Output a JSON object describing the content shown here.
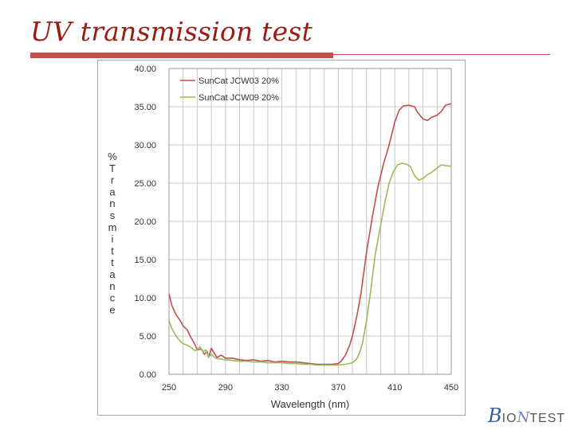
{
  "slide": {
    "title": "UV transmission test"
  },
  "logo": {
    "text": "BIOTEST"
  },
  "colors": {
    "title": "#9b1c12",
    "accent_bar": "#c0504d",
    "series1": "#c0504d",
    "series2": "#9bbb59",
    "grid": "#c8c8c8"
  },
  "chart_data": {
    "type": "line",
    "xlabel": "Wavelength (nm)",
    "ylabel": "%Transmittance",
    "xlim": [
      250,
      450
    ],
    "ylim": [
      0,
      40
    ],
    "x_ticks": [
      "250",
      "290",
      "330",
      "370",
      "410",
      "450"
    ],
    "y_ticks": [
      "0.00",
      "5.00",
      "10.00",
      "15.00",
      "20.00",
      "25.00",
      "30.00",
      "35.00",
      "40.00"
    ],
    "grid": true,
    "legend_position": "top-left",
    "series": [
      {
        "name": "SunCat JCW03 20%",
        "color": "#c0504d",
        "points": [
          [
            250,
            10.5
          ],
          [
            252,
            9.0
          ],
          [
            255,
            7.8
          ],
          [
            258,
            7.0
          ],
          [
            260,
            6.3
          ],
          [
            263,
            5.8
          ],
          [
            265,
            5.0
          ],
          [
            268,
            4.0
          ],
          [
            270,
            3.2
          ],
          [
            273,
            3.3
          ],
          [
            275,
            2.6
          ],
          [
            277,
            3.0
          ],
          [
            278,
            2.2
          ],
          [
            280,
            3.4
          ],
          [
            282,
            2.8
          ],
          [
            284,
            2.2
          ],
          [
            287,
            2.5
          ],
          [
            290,
            2.1
          ],
          [
            295,
            2.1
          ],
          [
            300,
            1.9
          ],
          [
            305,
            1.8
          ],
          [
            310,
            1.9
          ],
          [
            315,
            1.7
          ],
          [
            320,
            1.8
          ],
          [
            325,
            1.6
          ],
          [
            330,
            1.7
          ],
          [
            335,
            1.6
          ],
          [
            340,
            1.6
          ],
          [
            345,
            1.5
          ],
          [
            350,
            1.4
          ],
          [
            355,
            1.3
          ],
          [
            360,
            1.3
          ],
          [
            365,
            1.3
          ],
          [
            370,
            1.4
          ],
          [
            372,
            1.7
          ],
          [
            375,
            2.5
          ],
          [
            378,
            3.8
          ],
          [
            380,
            5.0
          ],
          [
            383,
            7.5
          ],
          [
            386,
            10.5
          ],
          [
            390,
            16.0
          ],
          [
            394,
            20.5
          ],
          [
            398,
            24.5
          ],
          [
            402,
            27.5
          ],
          [
            406,
            30.0
          ],
          [
            410,
            33.0
          ],
          [
            413,
            34.5
          ],
          [
            416,
            35.1
          ],
          [
            420,
            35.2
          ],
          [
            424,
            35.0
          ],
          [
            426,
            34.3
          ],
          [
            430,
            33.4
          ],
          [
            433,
            33.2
          ],
          [
            436,
            33.6
          ],
          [
            440,
            33.9
          ],
          [
            443,
            34.4
          ],
          [
            446,
            35.2
          ],
          [
            448,
            35.3
          ],
          [
            450,
            35.4
          ]
        ]
      },
      {
        "name": "SunCat JCW09 20%",
        "color": "#9bbb59",
        "points": [
          [
            250,
            7.0
          ],
          [
            252,
            6.0
          ],
          [
            255,
            5.0
          ],
          [
            258,
            4.3
          ],
          [
            260,
            4.0
          ],
          [
            263,
            3.8
          ],
          [
            265,
            3.6
          ],
          [
            268,
            3.1
          ],
          [
            270,
            3.2
          ],
          [
            272,
            3.6
          ],
          [
            274,
            2.9
          ],
          [
            276,
            3.2
          ],
          [
            278,
            2.3
          ],
          [
            280,
            2.6
          ],
          [
            283,
            2.1
          ],
          [
            286,
            2.0
          ],
          [
            290,
            1.9
          ],
          [
            295,
            1.8
          ],
          [
            300,
            1.7
          ],
          [
            305,
            1.7
          ],
          [
            310,
            1.6
          ],
          [
            315,
            1.6
          ],
          [
            320,
            1.5
          ],
          [
            325,
            1.5
          ],
          [
            330,
            1.5
          ],
          [
            335,
            1.4
          ],
          [
            340,
            1.4
          ],
          [
            345,
            1.3
          ],
          [
            350,
            1.3
          ],
          [
            355,
            1.2
          ],
          [
            360,
            1.2
          ],
          [
            365,
            1.2
          ],
          [
            370,
            1.2
          ],
          [
            375,
            1.3
          ],
          [
            380,
            1.5
          ],
          [
            383,
            2.0
          ],
          [
            385,
            2.8
          ],
          [
            387,
            4.0
          ],
          [
            390,
            7.0
          ],
          [
            393,
            11.0
          ],
          [
            396,
            15.5
          ],
          [
            400,
            19.5
          ],
          [
            403,
            22.5
          ],
          [
            406,
            25.0
          ],
          [
            409,
            26.5
          ],
          [
            412,
            27.4
          ],
          [
            415,
            27.6
          ],
          [
            418,
            27.5
          ],
          [
            421,
            27.2
          ],
          [
            424,
            26.0
          ],
          [
            427,
            25.4
          ],
          [
            430,
            25.6
          ],
          [
            433,
            26.1
          ],
          [
            436,
            26.4
          ],
          [
            440,
            27.0
          ],
          [
            443,
            27.4
          ],
          [
            446,
            27.3
          ],
          [
            450,
            27.2
          ]
        ]
      }
    ]
  }
}
